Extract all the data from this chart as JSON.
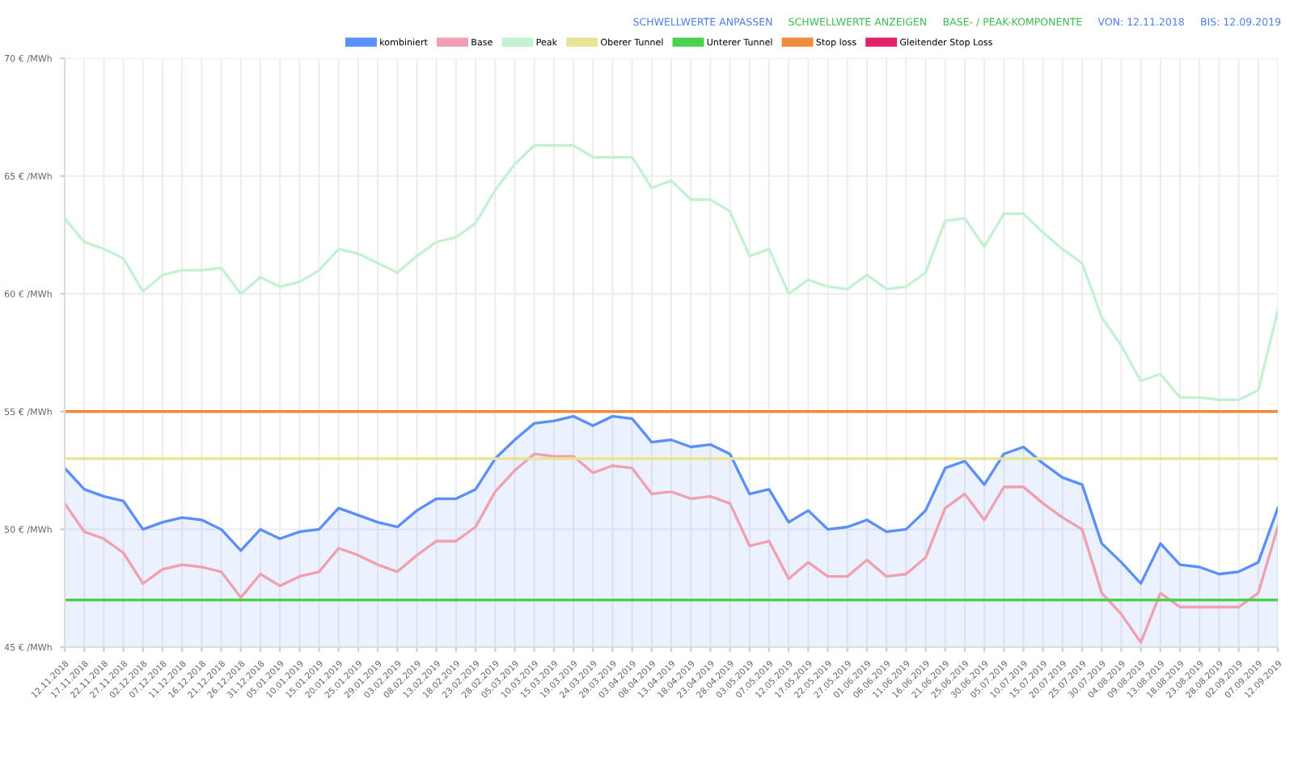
{
  "chart_data": {
    "type": "line",
    "annotations": [
      "SCHWELLWERTE ANPASSEN",
      "SCHWELLWERTE ANZEIGEN",
      "BASE- / PEAK-KOMPONENTE",
      "VON: 12.11.2018",
      "BIS: 12.09.2019"
    ],
    "categories": [
      "12.11.2018",
      "17.11.2018",
      "22.11.2018",
      "27.11.2018",
      "02.12.2018",
      "07.12.2018",
      "11.12.2018",
      "16.12.2018",
      "21.12.2018",
      "26.12.2018",
      "31.12.2018",
      "05.01.2019",
      "10.01.2019",
      "15.01.2019",
      "20.01.2019",
      "25.01.2019",
      "29.01.2019",
      "03.02.2019",
      "08.02.2019",
      "13.02.2019",
      "18.02.2019",
      "23.02.2019",
      "28.02.2019",
      "05.03.2019",
      "10.03.2019",
      "15.03.2019",
      "19.03.2019",
      "24.03.2019",
      "29.03.2019",
      "03.04.2019",
      "08.04.2019",
      "13.04.2019",
      "18.04.2019",
      "23.04.2019",
      "28.04.2019",
      "03.05.2019",
      "07.05.2019",
      "12.05.2019",
      "17.05.2019",
      "22.05.2019",
      "27.05.2019",
      "01.06.2019",
      "06.06.2019",
      "11.06.2019",
      "16.06.2019",
      "21.06.2019",
      "25.06.2019",
      "30.06.2019",
      "05.07.2019",
      "10.07.2019",
      "15.07.2019",
      "20.07.2019",
      "25.07.2019",
      "30.07.2019",
      "04.08.2019",
      "09.08.2019",
      "13.08.2019",
      "18.08.2019",
      "23.08.2019",
      "28.08.2019",
      "02.09.2019",
      "07.09.2019",
      "12.09.2019"
    ],
    "series": [
      {
        "name": "kombiniert",
        "type": "area",
        "color": "#5b8ff9",
        "values": [
          52.6,
          51.7,
          51.4,
          51.2,
          50.0,
          50.3,
          50.5,
          50.4,
          50.0,
          49.1,
          50.0,
          49.6,
          49.9,
          50.0,
          50.9,
          50.6,
          50.3,
          50.1,
          50.8,
          51.3,
          51.3,
          51.7,
          53.0,
          53.8,
          54.5,
          54.6,
          54.8,
          54.4,
          54.8,
          54.7,
          53.7,
          53.8,
          53.5,
          53.6,
          53.2,
          51.5,
          51.7,
          50.3,
          50.8,
          50.0,
          50.1,
          50.4,
          49.9,
          50.0,
          50.8,
          52.6,
          52.9,
          51.9,
          53.2,
          53.5,
          52.8,
          52.2,
          51.9,
          49.4,
          48.6,
          47.7,
          49.4,
          48.5,
          48.4,
          48.1,
          48.2,
          48.6,
          50.9
        ]
      },
      {
        "name": "Base",
        "color": "#f0a0b0",
        "values": [
          51.1,
          49.9,
          49.6,
          49.0,
          47.7,
          48.3,
          48.5,
          48.4,
          48.2,
          47.1,
          48.1,
          47.6,
          48.0,
          48.2,
          49.2,
          48.9,
          48.5,
          48.2,
          48.9,
          49.5,
          49.5,
          50.1,
          51.6,
          52.5,
          53.2,
          53.1,
          53.1,
          52.4,
          52.7,
          52.6,
          51.5,
          51.6,
          51.3,
          51.4,
          51.1,
          49.3,
          49.5,
          47.9,
          48.6,
          48.0,
          48.0,
          48.7,
          48.0,
          48.1,
          48.8,
          50.9,
          51.5,
          50.4,
          51.8,
          51.8,
          51.1,
          50.5,
          50.0,
          47.3,
          46.4,
          45.2,
          47.3,
          46.7,
          46.7,
          46.7,
          46.7,
          47.3,
          50.1
        ]
      },
      {
        "name": "Peak",
        "color": "#c6f0d2",
        "values": [
          63.2,
          62.2,
          61.9,
          61.5,
          60.1,
          60.8,
          61.0,
          61.0,
          61.1,
          60.0,
          60.7,
          60.3,
          60.5,
          61.0,
          61.9,
          61.7,
          61.3,
          60.9,
          61.6,
          62.2,
          62.4,
          63.0,
          64.4,
          65.5,
          66.3,
          66.3,
          66.3,
          65.8,
          65.8,
          65.8,
          64.5,
          64.8,
          64.0,
          64.0,
          63.5,
          61.6,
          61.9,
          60.0,
          60.6,
          60.3,
          60.2,
          60.8,
          60.2,
          60.3,
          60.9,
          63.1,
          63.2,
          62.0,
          63.4,
          63.4,
          62.6,
          61.9,
          61.3,
          59.0,
          57.8,
          56.3,
          56.6,
          55.6,
          55.6,
          55.5,
          55.5,
          55.9,
          59.3
        ]
      },
      {
        "name": "Gleitender Stop Loss",
        "color": "#e0206a",
        "values": [
          null,
          null,
          null,
          null,
          null,
          null,
          null,
          null,
          null,
          null,
          null,
          null,
          null,
          null,
          null,
          null,
          null,
          null,
          null,
          null,
          null,
          null,
          null,
          null,
          null,
          null,
          null,
          null,
          null,
          null,
          null,
          null,
          null,
          null,
          null,
          null,
          null,
          null,
          null,
          null,
          null,
          null,
          null,
          null,
          null,
          null,
          null,
          null,
          null,
          null,
          null,
          null,
          null,
          null,
          null,
          null,
          null,
          null,
          null,
          null,
          null,
          null,
          null
        ]
      }
    ],
    "ref_lines": [
      {
        "axis": "y",
        "value": 53,
        "label": "Oberer Tunnel",
        "color": "#e8e496"
      },
      {
        "axis": "y",
        "value": 47,
        "label": "Unterer Tunnel",
        "color": "#4cd050"
      },
      {
        "axis": "y",
        "value": 55,
        "label": "Stop loss",
        "color": "#f08a3c"
      }
    ],
    "ylim": [
      45,
      70
    ],
    "yticks": [
      {
        "value": 45,
        "label": "45 € /MWh"
      },
      {
        "value": 50,
        "label": "50 € /MWh"
      },
      {
        "value": 55,
        "label": "55 € /MWh"
      },
      {
        "value": 60,
        "label": "60 € /MWh"
      },
      {
        "value": 65,
        "label": "65 € /MWh"
      },
      {
        "value": 70,
        "label": "70 € /MWh"
      }
    ],
    "grid": true,
    "legend": "top",
    "marker": "none",
    "line_style": "solid"
  }
}
